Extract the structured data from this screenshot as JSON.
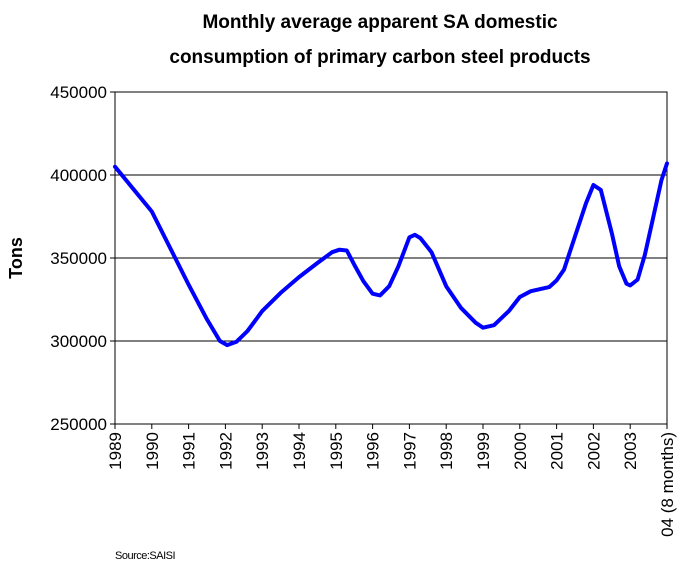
{
  "chart_data": {
    "type": "line",
    "title": [
      "Monthly average apparent SA domestic",
      "consumption of primary carbon steel products"
    ],
    "y_label": "Tons",
    "source": "Source:SAISI",
    "color": "#0000ff",
    "grid": true,
    "xlim": [
      1989,
      2004
    ],
    "xticks": [
      1989,
      1990,
      1991,
      1992,
      1993,
      1994,
      1995,
      1996,
      1997,
      1998,
      1999,
      2000,
      2001,
      2002,
      2003,
      {
        "value": 2004,
        "label": "04 (8 months)"
      }
    ],
    "ylim": [
      250000,
      450000
    ],
    "yticks": [
      250000,
      300000,
      350000,
      400000,
      450000
    ],
    "x": [
      1989.0,
      1990.0,
      1991.0,
      1991.5,
      1991.85,
      1992.05,
      1992.3,
      1992.6,
      1993.0,
      1993.5,
      1994.0,
      1994.5,
      1994.9,
      1995.1,
      1995.3,
      1995.5,
      1995.75,
      1996.0,
      1996.2,
      1996.45,
      1996.7,
      1997.0,
      1997.15,
      1997.3,
      1997.6,
      1998.0,
      1998.4,
      1998.8,
      1999.0,
      1999.3,
      1999.7,
      2000.0,
      2000.3,
      2000.8,
      2001.0,
      2001.2,
      2001.5,
      2001.8,
      2002.0,
      2002.2,
      2002.5,
      2002.7,
      2002.9,
      2003.0,
      2003.2,
      2003.4,
      2003.6,
      2003.85,
      2004.0
    ],
    "values": [
      405000,
      378000,
      334000,
      313000,
      300000,
      297500,
      299500,
      306000,
      318000,
      329000,
      338500,
      347000,
      353500,
      355000,
      354500,
      346000,
      336000,
      328500,
      327500,
      333000,
      345000,
      362500,
      364000,
      362000,
      353500,
      333000,
      320000,
      311000,
      308000,
      309500,
      318000,
      326500,
      330000,
      332500,
      336500,
      343000,
      363000,
      383000,
      394000,
      391000,
      365000,
      345000,
      334500,
      333500,
      337000,
      352000,
      372000,
      397000,
      407000
    ]
  }
}
